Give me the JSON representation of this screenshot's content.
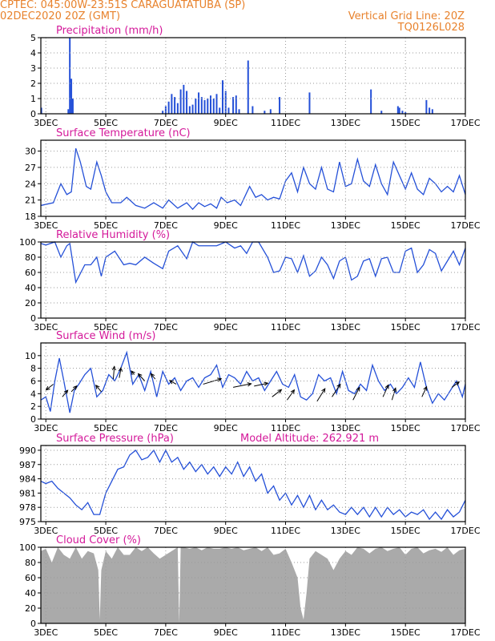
{
  "header": {
    "line1_left": "CPTEC:   045:00W-23:51S   CARAGUATATUBA (SP)",
    "line2_left": "02DEC2020 20Z (GMT)",
    "line2_right": "Vertical Grid Line: 20Z",
    "line3_right": "TQ0126L028"
  },
  "colors": {
    "header": "#e8822c",
    "title": "#d4199a",
    "line": "#2450d8",
    "cloud": "#aaaaaa",
    "grid": "#9a9a9a"
  },
  "x_axis": {
    "start_day": 2.833,
    "end_day": 17.0,
    "tick_days": [
      3,
      5,
      7,
      9,
      11,
      13,
      15,
      17
    ],
    "tick_labels": [
      "3DEC",
      "5DEC",
      "7DEC",
      "9DEC",
      "11DEC",
      "13DEC",
      "15DEC",
      "17DEC"
    ]
  },
  "chart_data": [
    {
      "id": "precip",
      "type": "bar",
      "title": "Precipitation (mm/h)",
      "ylabel": "mm/h",
      "ylim": [
        0,
        5
      ],
      "yticks": [
        0,
        1,
        2,
        3,
        4,
        5
      ],
      "grid": true,
      "x": [
        2.85,
        3.75,
        3.8,
        3.85,
        3.9,
        6.9,
        7.0,
        7.1,
        7.2,
        7.3,
        7.4,
        7.5,
        7.6,
        7.7,
        7.8,
        7.9,
        8.0,
        8.1,
        8.2,
        8.3,
        8.4,
        8.5,
        8.6,
        8.7,
        8.8,
        8.9,
        9.0,
        9.1,
        9.25,
        9.35,
        9.45,
        9.75,
        9.9,
        10.3,
        10.5,
        10.8,
        11.8,
        13.85,
        14.2,
        14.75,
        14.8,
        14.9,
        15.0,
        15.7,
        15.8,
        15.9
      ],
      "values": [
        0.4,
        0.3,
        5.0,
        2.3,
        1.0,
        0.2,
        0.5,
        0.8,
        1.3,
        1.1,
        0.7,
        1.6,
        1.9,
        1.5,
        0.5,
        0.6,
        1.0,
        1.4,
        1.1,
        0.9,
        1.0,
        1.2,
        1.0,
        1.3,
        0.4,
        2.2,
        1.5,
        0.4,
        1.1,
        1.2,
        0.3,
        3.5,
        0.5,
        0.2,
        0.3,
        1.1,
        1.4,
        1.6,
        0.2,
        0.5,
        0.4,
        0.2,
        0.1,
        0.9,
        0.4,
        0.3
      ]
    },
    {
      "id": "temp",
      "type": "line",
      "title": "Surface Temperature (nC)",
      "ylabel": "nC",
      "ylim": [
        18,
        32
      ],
      "yticks": [
        18,
        21,
        24,
        27,
        30
      ],
      "grid": true,
      "x": [
        2.833,
        3.0,
        3.25,
        3.5,
        3.7,
        3.85,
        4.0,
        4.15,
        4.35,
        4.5,
        4.7,
        4.85,
        5.0,
        5.2,
        5.5,
        5.7,
        6.0,
        6.3,
        6.6,
        6.9,
        7.1,
        7.4,
        7.7,
        7.9,
        8.1,
        8.3,
        8.5,
        8.7,
        8.85,
        9.05,
        9.3,
        9.5,
        9.8,
        10.0,
        10.2,
        10.4,
        10.6,
        10.8,
        11.0,
        11.2,
        11.4,
        11.6,
        11.8,
        12.0,
        12.2,
        12.4,
        12.6,
        12.8,
        13.0,
        13.2,
        13.4,
        13.6,
        13.8,
        14.0,
        14.2,
        14.4,
        14.6,
        14.8,
        15.0,
        15.2,
        15.4,
        15.6,
        15.8,
        16.0,
        16.2,
        16.4,
        16.6,
        16.8,
        17.0
      ],
      "values": [
        20.0,
        20.2,
        20.5,
        24.0,
        22.0,
        22.5,
        30.5,
        28.0,
        23.5,
        23.0,
        28.0,
        25.5,
        22.5,
        20.5,
        20.5,
        21.5,
        20.0,
        19.5,
        20.5,
        19.5,
        21.0,
        19.5,
        20.5,
        19.3,
        20.5,
        19.8,
        20.3,
        19.5,
        21.5,
        20.5,
        21.0,
        20.0,
        23.5,
        21.5,
        22.0,
        21.0,
        21.5,
        21.2,
        24.5,
        26.0,
        22.5,
        27.0,
        24.0,
        23.0,
        27.0,
        23.0,
        22.5,
        28.0,
        23.5,
        24.0,
        28.5,
        24.5,
        23.5,
        27.5,
        24.0,
        22.0,
        28.0,
        25.5,
        23.0,
        26.0,
        23.0,
        22.0,
        25.0,
        24.0,
        22.5,
        23.5,
        22.5,
        25.5,
        22.0
      ]
    },
    {
      "id": "rh",
      "type": "line",
      "title": "Relative Humidity (%)",
      "ylabel": "%",
      "ylim": [
        0,
        100
      ],
      "yticks": [
        0,
        20,
        40,
        60,
        80,
        100
      ],
      "grid": true,
      "x": [
        2.833,
        3.0,
        3.3,
        3.5,
        3.7,
        3.8,
        4.0,
        4.3,
        4.5,
        4.7,
        4.85,
        5.0,
        5.3,
        5.6,
        5.8,
        6.0,
        6.3,
        6.6,
        6.9,
        7.1,
        7.4,
        7.7,
        7.9,
        8.1,
        8.4,
        8.7,
        9.0,
        9.3,
        9.5,
        9.7,
        9.9,
        10.1,
        10.4,
        10.6,
        10.8,
        11.0,
        11.2,
        11.4,
        11.6,
        11.8,
        12.0,
        12.2,
        12.4,
        12.6,
        12.8,
        13.0,
        13.2,
        13.4,
        13.6,
        13.8,
        14.0,
        14.2,
        14.4,
        14.6,
        14.8,
        15.0,
        15.2,
        15.4,
        15.6,
        15.8,
        16.0,
        16.2,
        16.4,
        16.6,
        16.8,
        17.0
      ],
      "values": [
        98,
        96,
        100,
        80,
        95,
        98,
        47,
        70,
        70,
        80,
        55,
        80,
        88,
        70,
        72,
        70,
        80,
        72,
        65,
        88,
        95,
        78,
        100,
        95,
        95,
        95,
        100,
        92,
        95,
        85,
        100,
        100,
        80,
        60,
        62,
        80,
        78,
        60,
        82,
        55,
        62,
        80,
        70,
        52,
        75,
        80,
        50,
        55,
        75,
        78,
        55,
        78,
        80,
        60,
        60,
        88,
        92,
        60,
        70,
        90,
        85,
        62,
        75,
        88,
        70,
        92
      ]
    },
    {
      "id": "wind",
      "type": "line",
      "title": "Surface Wind (m/s)",
      "ylabel": "m/s",
      "ylim": [
        0,
        12
      ],
      "yticks": [
        0,
        2,
        4,
        6,
        8,
        10
      ],
      "grid": true,
      "x": [
        2.833,
        3.0,
        3.15,
        3.3,
        3.45,
        3.6,
        3.8,
        3.95,
        4.1,
        4.3,
        4.5,
        4.7,
        4.9,
        5.1,
        5.3,
        5.5,
        5.7,
        5.9,
        6.1,
        6.3,
        6.5,
        6.7,
        6.9,
        7.1,
        7.3,
        7.5,
        7.7,
        7.9,
        8.1,
        8.3,
        8.5,
        8.7,
        8.9,
        9.1,
        9.3,
        9.5,
        9.7,
        9.9,
        10.1,
        10.3,
        10.5,
        10.7,
        10.9,
        11.1,
        11.3,
        11.5,
        11.7,
        11.9,
        12.1,
        12.3,
        12.5,
        12.7,
        12.9,
        13.1,
        13.3,
        13.5,
        13.7,
        13.9,
        14.1,
        14.3,
        14.5,
        14.7,
        14.9,
        15.1,
        15.3,
        15.5,
        15.7,
        15.9,
        16.1,
        16.3,
        16.5,
        16.7,
        16.9,
        17.0
      ],
      "values": [
        3.0,
        3.5,
        1.2,
        6.0,
        9.6,
        6.0,
        1.0,
        4.5,
        5.5,
        7.0,
        8.0,
        3.5,
        4.5,
        7.0,
        6.0,
        8.0,
        10.5,
        5.5,
        7.0,
        4.5,
        7.5,
        3.5,
        7.5,
        5.5,
        6.5,
        4.5,
        6.0,
        6.5,
        5.0,
        6.5,
        7.0,
        8.5,
        5.0,
        7.0,
        6.5,
        5.5,
        7.5,
        6.0,
        6.5,
        4.5,
        6.0,
        7.5,
        5.5,
        5.0,
        7.0,
        3.5,
        3.0,
        4.0,
        7.0,
        6.0,
        6.5,
        4.0,
        7.5,
        4.5,
        4.0,
        5.5,
        4.5,
        8.5,
        6.0,
        4.5,
        5.5,
        4.0,
        5.0,
        6.5,
        5.0,
        9.0,
        5.0,
        2.5,
        4.0,
        3.0,
        4.5,
        6.0,
        3.5,
        5.5
      ],
      "vectors_x": [
        3.25,
        3.55,
        3.85,
        4.85,
        5.25,
        5.45,
        5.95,
        6.3,
        6.65,
        7.35,
        8.25,
        9.25,
        9.95,
        10.55,
        11.05,
        12.05,
        12.55,
        13.25,
        14.25,
        14.55,
        15.55,
        16.55
      ],
      "vectors_u": [
        -2.0,
        1.5,
        1.5,
        -1.5,
        0.3,
        0.5,
        -0.8,
        -1.8,
        -1.2,
        -1.8,
        5.0,
        5.0,
        3.8,
        2.6,
        2.0,
        2.2,
        2.3,
        1.8,
        1.5,
        1.0,
        1.3,
        2.0
      ],
      "vectors_v": [
        -1.6,
        1.8,
        1.6,
        1.8,
        3.5,
        2.8,
        1.0,
        2.0,
        1.5,
        1.0,
        1.5,
        1.0,
        0.8,
        2.0,
        2.8,
        3.5,
        3.5,
        3.5,
        3.3,
        3.3,
        2.8,
        1.5
      ],
      "vectors_y": [
        5.5,
        3.5,
        4.3,
        4.3,
        6.3,
        6.5,
        7.0,
        6.0,
        6.3,
        5.5,
        5.5,
        5.0,
        5.2,
        3.5,
        3.0,
        2.8,
        3.5,
        3.0,
        3.5,
        3.0,
        3.5,
        5.0
      ]
    },
    {
      "id": "pres",
      "type": "line",
      "title": "Surface Pressure (hPa)",
      "annotation": "Model Altitude: 262.921 m",
      "ylabel": "hPa",
      "ylim": [
        975,
        991
      ],
      "yticks": [
        975,
        978,
        981,
        984,
        987,
        990
      ],
      "grid": true,
      "x": [
        2.833,
        3.0,
        3.2,
        3.4,
        3.6,
        3.8,
        4.0,
        4.2,
        4.4,
        4.6,
        4.8,
        5.0,
        5.2,
        5.4,
        5.6,
        5.8,
        6.0,
        6.2,
        6.4,
        6.6,
        6.8,
        7.0,
        7.2,
        7.4,
        7.6,
        7.8,
        8.0,
        8.2,
        8.4,
        8.6,
        8.8,
        9.0,
        9.2,
        9.4,
        9.6,
        9.8,
        10.0,
        10.2,
        10.4,
        10.6,
        10.8,
        11.0,
        11.2,
        11.4,
        11.6,
        11.8,
        12.0,
        12.2,
        12.4,
        12.6,
        12.8,
        13.0,
        13.2,
        13.4,
        13.6,
        13.8,
        14.0,
        14.2,
        14.4,
        14.6,
        14.8,
        15.0,
        15.2,
        15.4,
        15.6,
        15.8,
        16.0,
        16.2,
        16.4,
        16.6,
        16.8,
        17.0
      ],
      "values": [
        983.5,
        983.0,
        983.5,
        982.0,
        981.0,
        980.0,
        978.5,
        977.5,
        979.0,
        976.5,
        976.5,
        981.0,
        983.5,
        986.0,
        986.5,
        989.0,
        990.0,
        988.0,
        988.5,
        990.0,
        987.5,
        990.0,
        987.5,
        988.5,
        986.0,
        987.5,
        985.5,
        987.0,
        985.0,
        986.5,
        984.5,
        986.5,
        985.0,
        987.5,
        984.5,
        986.5,
        983.5,
        985.0,
        981.0,
        982.5,
        979.5,
        981.0,
        978.5,
        980.5,
        978.0,
        980.5,
        977.5,
        979.5,
        977.5,
        978.5,
        977.0,
        976.5,
        978.0,
        976.5,
        978.0,
        976.0,
        978.0,
        976.0,
        978.0,
        976.5,
        977.5,
        976.0,
        977.0,
        976.5,
        977.5,
        975.5,
        977.0,
        975.5,
        977.5,
        976.0,
        977.0,
        979.5
      ]
    },
    {
      "id": "cloud",
      "type": "area",
      "title": "Cloud Cover (%)",
      "ylabel": "%",
      "ylim": [
        0,
        100
      ],
      "yticks": [
        0,
        20,
        40,
        60,
        80,
        100
      ],
      "grid": true,
      "x": [
        2.833,
        3.0,
        3.2,
        3.4,
        3.6,
        3.8,
        4.0,
        4.2,
        4.4,
        4.6,
        4.75,
        4.8,
        4.85,
        5.0,
        5.2,
        5.4,
        5.6,
        5.8,
        6.0,
        6.2,
        6.4,
        6.6,
        6.8,
        7.0,
        7.2,
        7.4,
        7.45,
        7.5,
        7.6,
        7.8,
        8.0,
        8.2,
        8.4,
        8.6,
        8.8,
        9.0,
        9.2,
        9.4,
        9.6,
        9.8,
        10.0,
        10.2,
        10.4,
        10.6,
        10.8,
        11.0,
        11.2,
        11.4,
        11.5,
        11.6,
        11.7,
        11.8,
        12.0,
        12.2,
        12.4,
        12.6,
        12.8,
        13.0,
        13.2,
        13.4,
        13.6,
        13.8,
        14.0,
        14.2,
        14.4,
        14.6,
        14.8,
        15.0,
        15.2,
        15.4,
        15.6,
        15.8,
        16.0,
        16.2,
        16.4,
        16.6,
        16.8,
        17.0
      ],
      "values": [
        95,
        98,
        80,
        100,
        90,
        85,
        100,
        85,
        95,
        92,
        70,
        5,
        70,
        95,
        85,
        100,
        90,
        90,
        100,
        95,
        100,
        92,
        85,
        90,
        95,
        100,
        0,
        100,
        100,
        98,
        100,
        96,
        100,
        98,
        98,
        100,
        98,
        100,
        96,
        98,
        100,
        95,
        100,
        90,
        92,
        98,
        80,
        60,
        20,
        5,
        40,
        85,
        95,
        90,
        85,
        70,
        85,
        95,
        90,
        100,
        98,
        92,
        98,
        100,
        95,
        98,
        100,
        90,
        98,
        100,
        92,
        96,
        98,
        94,
        100,
        90,
        96,
        98
      ]
    }
  ]
}
